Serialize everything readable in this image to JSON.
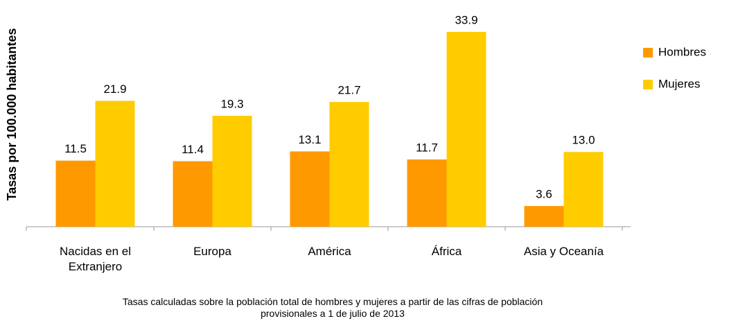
{
  "chart_data": {
    "type": "bar",
    "y_label": "Tasas por 100.000 habitantes",
    "note": "Tasas calculadas sobre la población total de hombres y mujeres a partir de las cifras de población\nprovisionales a  1 de julio de 2013",
    "categories": [
      "Nacidas en el\nExtranjero",
      "Europa",
      "América",
      "África",
      "Asia y Oceanía"
    ],
    "series": [
      {
        "name": "Hombres",
        "color": "#ff9900",
        "values": [
          11.5,
          11.4,
          13.1,
          11.7,
          3.6
        ],
        "value_labels": [
          "11.5",
          "11.4",
          "13.1",
          "11.7",
          "3.6"
        ]
      },
      {
        "name": "Mujeres",
        "color": "#ffcc00",
        "values": [
          21.9,
          19.3,
          21.7,
          33.9,
          13.0
        ],
        "value_labels": [
          "21.9",
          "19.3",
          "21.7",
          "33.9",
          "13.0"
        ]
      }
    ],
    "ylim": [
      0,
      40
    ],
    "legend": "right"
  }
}
